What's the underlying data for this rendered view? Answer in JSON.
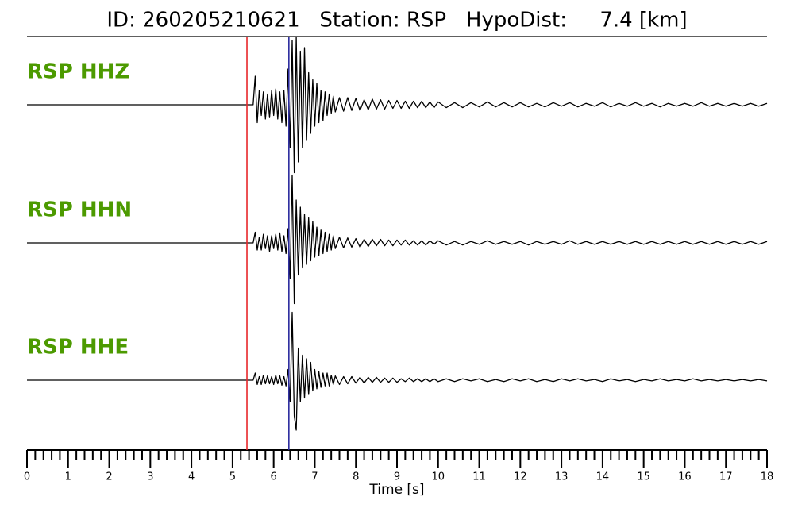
{
  "chart_data": {
    "type": "waveform",
    "title": "ID: 260205210621   Station: RSP   HypoDist:     7.4 [km]",
    "xlabel": "Time [s]",
    "xlim": [
      0,
      18
    ],
    "xticks": [
      0,
      1,
      2,
      3,
      4,
      5,
      6,
      7,
      8,
      9,
      10,
      11,
      12,
      13,
      14,
      15,
      16,
      17,
      18
    ],
    "xminorticks": [
      0.2,
      0.4,
      0.6,
      0.8,
      1.2,
      1.4,
      1.6,
      1.8,
      2.2,
      2.4,
      2.6,
      2.8,
      3.2,
      3.4,
      3.6,
      3.8,
      4.2,
      4.4,
      4.6,
      4.8,
      5.2,
      5.4,
      5.6,
      5.8,
      6.2,
      6.4,
      6.6,
      6.8,
      7.2,
      7.4,
      7.6,
      7.8,
      8.2,
      8.4,
      8.6,
      8.8,
      9.2,
      9.4,
      9.6,
      9.8,
      10.2,
      10.4,
      10.6,
      10.8,
      11.2,
      11.4,
      11.6,
      11.8,
      12.2,
      12.4,
      12.6,
      12.8,
      13.2,
      13.4,
      13.6,
      13.8,
      14.2,
      14.4,
      14.6,
      14.8,
      15.2,
      15.4,
      15.6,
      15.8,
      16.2,
      16.4,
      16.6,
      16.8,
      17.2,
      17.4,
      17.6,
      17.8
    ],
    "ylim": [
      -1,
      1
    ],
    "label_color": "#4c9a00",
    "picks": [
      {
        "time": 5.35,
        "color": "#e8262a"
      },
      {
        "time": 6.37,
        "color": "#2b2b9e"
      }
    ],
    "x": [
      0,
      5.5,
      5.55,
      5.6,
      5.65,
      5.7,
      5.75,
      5.8,
      5.85,
      5.9,
      5.95,
      6,
      6.05,
      6.1,
      6.15,
      6.2,
      6.25,
      6.3,
      6.35,
      6.4,
      6.45,
      6.5,
      6.55,
      6.6,
      6.65,
      6.7,
      6.75,
      6.8,
      6.85,
      6.9,
      6.95,
      7,
      7.05,
      7.1,
      7.15,
      7.2,
      7.25,
      7.3,
      7.35,
      7.4,
      7.45,
      7.5,
      7.6,
      7.7,
      7.8,
      7.9,
      8,
      8.1,
      8.2,
      8.3,
      8.4,
      8.5,
      8.6,
      8.7,
      8.8,
      8.9,
      9,
      9.1,
      9.2,
      9.3,
      9.4,
      9.5,
      9.6,
      9.7,
      9.8,
      9.9,
      10,
      10.2,
      10.4,
      10.6,
      10.8,
      11,
      11.2,
      11.4,
      11.6,
      11.8,
      12,
      12.2,
      12.4,
      12.6,
      12.8,
      13,
      13.2,
      13.4,
      13.6,
      13.8,
      14,
      14.2,
      14.4,
      14.6,
      14.8,
      15,
      15.2,
      15.4,
      15.6,
      15.8,
      16,
      16.2,
      16.4,
      16.6,
      16.8,
      17,
      17.2,
      17.4,
      17.6,
      17.8,
      18
    ],
    "series": [
      {
        "name": "RSP HHZ",
        "color": "#000000",
        "values": [
          0,
          0,
          0.4,
          -0.25,
          0.2,
          -0.15,
          0.18,
          -0.2,
          0.15,
          -0.18,
          0.2,
          -0.15,
          0.22,
          -0.2,
          0.18,
          -0.25,
          0.2,
          -0.3,
          0.5,
          -0.6,
          0.9,
          -0.95,
          0.95,
          -0.8,
          0.75,
          -0.6,
          0.8,
          -0.5,
          0.45,
          -0.4,
          0.35,
          -0.3,
          0.3,
          -0.25,
          0.2,
          -0.22,
          0.18,
          -0.15,
          0.15,
          -0.12,
          0.12,
          -0.1,
          0.1,
          -0.09,
          0.1,
          -0.08,
          0.09,
          -0.08,
          0.07,
          -0.07,
          0.08,
          -0.06,
          0.07,
          -0.06,
          0.06,
          -0.05,
          0.06,
          -0.05,
          0.05,
          -0.05,
          0.05,
          -0.04,
          0.05,
          -0.04,
          0.04,
          -0.04,
          0.04,
          -0.04,
          0.03,
          -0.04,
          0.03,
          -0.03,
          0.04,
          -0.03,
          0.03,
          -0.03,
          0.03,
          -0.03,
          0.02,
          -0.03,
          0.03,
          -0.02,
          0.03,
          -0.03,
          0.02,
          -0.02,
          0.03,
          -0.03,
          0.02,
          -0.02,
          0.03,
          -0.02,
          0.02,
          -0.03,
          0.02,
          -0.02,
          0.02,
          -0.02,
          0.03,
          -0.02,
          0.02,
          -0.02,
          0.02,
          -0.02,
          0.02,
          -0.02,
          0.02
        ]
      },
      {
        "name": "RSP HHN",
        "color": "#000000",
        "values": [
          0,
          0,
          0.15,
          -0.1,
          0.08,
          -0.1,
          0.12,
          -0.08,
          0.1,
          -0.12,
          0.1,
          -0.08,
          0.12,
          -0.1,
          0.14,
          -0.12,
          0.1,
          -0.15,
          0.2,
          -0.5,
          0.95,
          -0.85,
          0.6,
          -0.45,
          0.5,
          -0.35,
          0.4,
          -0.3,
          0.35,
          -0.25,
          0.3,
          -0.2,
          0.22,
          -0.18,
          0.18,
          -0.15,
          0.15,
          -0.12,
          0.12,
          -0.1,
          0.1,
          -0.08,
          0.08,
          -0.07,
          0.07,
          -0.06,
          0.06,
          -0.06,
          0.05,
          -0.05,
          0.05,
          -0.04,
          0.05,
          -0.04,
          0.04,
          -0.04,
          0.04,
          -0.03,
          0.04,
          -0.03,
          0.03,
          -0.03,
          0.03,
          -0.03,
          0.03,
          -0.02,
          0.03,
          -0.03,
          0.02,
          -0.03,
          0.02,
          -0.02,
          0.03,
          -0.02,
          0.02,
          -0.02,
          0.02,
          -0.03,
          0.02,
          -0.02,
          0.02,
          -0.02,
          0.03,
          -0.02,
          0.02,
          -0.02,
          0.02,
          -0.02,
          0.02,
          -0.02,
          0.02,
          -0.02,
          0.02,
          -0.02,
          0.02,
          -0.02,
          0.02,
          -0.02,
          0.02,
          -0.02,
          0.02,
          -0.02,
          0.02,
          -0.02,
          0.02,
          -0.02,
          0.02
        ]
      },
      {
        "name": "RSP HHE",
        "color": "#000000",
        "values": [
          0,
          0,
          0.1,
          -0.06,
          0.05,
          -0.06,
          0.07,
          -0.05,
          0.06,
          -0.05,
          0.05,
          -0.06,
          0.07,
          -0.05,
          0.06,
          -0.07,
          0.05,
          -0.08,
          0.15,
          -0.3,
          0.95,
          -0.5,
          -0.7,
          0.45,
          -0.3,
          0.35,
          -0.25,
          0.3,
          -0.2,
          0.25,
          -0.15,
          0.15,
          -0.12,
          0.12,
          -0.1,
          0.1,
          -0.08,
          0.1,
          -0.08,
          0.07,
          -0.06,
          0.06,
          -0.06,
          0.05,
          -0.05,
          0.05,
          -0.04,
          0.04,
          -0.04,
          0.04,
          -0.03,
          0.04,
          -0.03,
          0.03,
          -0.03,
          0.03,
          -0.03,
          0.02,
          -0.02,
          0.03,
          -0.02,
          0.02,
          -0.02,
          0.02,
          -0.02,
          0.02,
          -0.02,
          0.02,
          -0.02,
          0.02,
          -0.01,
          0.02,
          -0.02,
          0.01,
          -0.02,
          0.02,
          -0.01,
          0.02,
          -0.02,
          0.01,
          -0.02,
          0.02,
          -0.01,
          0.02,
          -0.01,
          0.01,
          -0.02,
          0.02,
          -0.01,
          0.01,
          -0.02,
          0.01,
          -0.01,
          0.02,
          -0.01,
          0.01,
          -0.01,
          0.02,
          -0.01,
          0.01,
          -0.01,
          0.01,
          -0.01,
          0.01,
          -0.01,
          0.01,
          -0.01
        ]
      }
    ]
  }
}
